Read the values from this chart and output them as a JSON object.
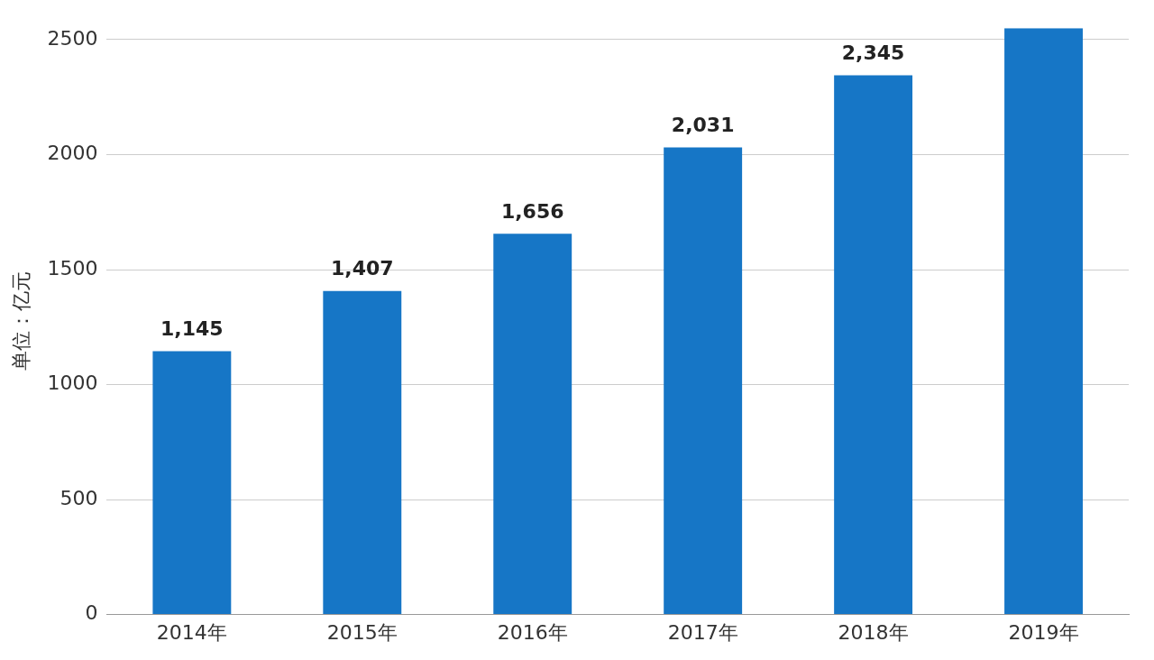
{
  "chart_data": {
    "type": "bar",
    "ylabel": "单位：亿元",
    "categories": [
      "2014年",
      "2015年",
      "2016年",
      "2017年",
      "2018年",
      "2019年"
    ],
    "values": [
      1145,
      1407,
      1656,
      2031,
      2345,
      2550
    ],
    "value_labels": [
      "1,145",
      "1,407",
      "1,656",
      "2,031",
      "2,345",
      null
    ],
    "color": "#1676c6",
    "ylim": [
      0,
      2550
    ],
    "yticks": [
      0,
      500,
      1000,
      1500,
      2000,
      2500
    ],
    "grid": "y",
    "legend": false
  }
}
